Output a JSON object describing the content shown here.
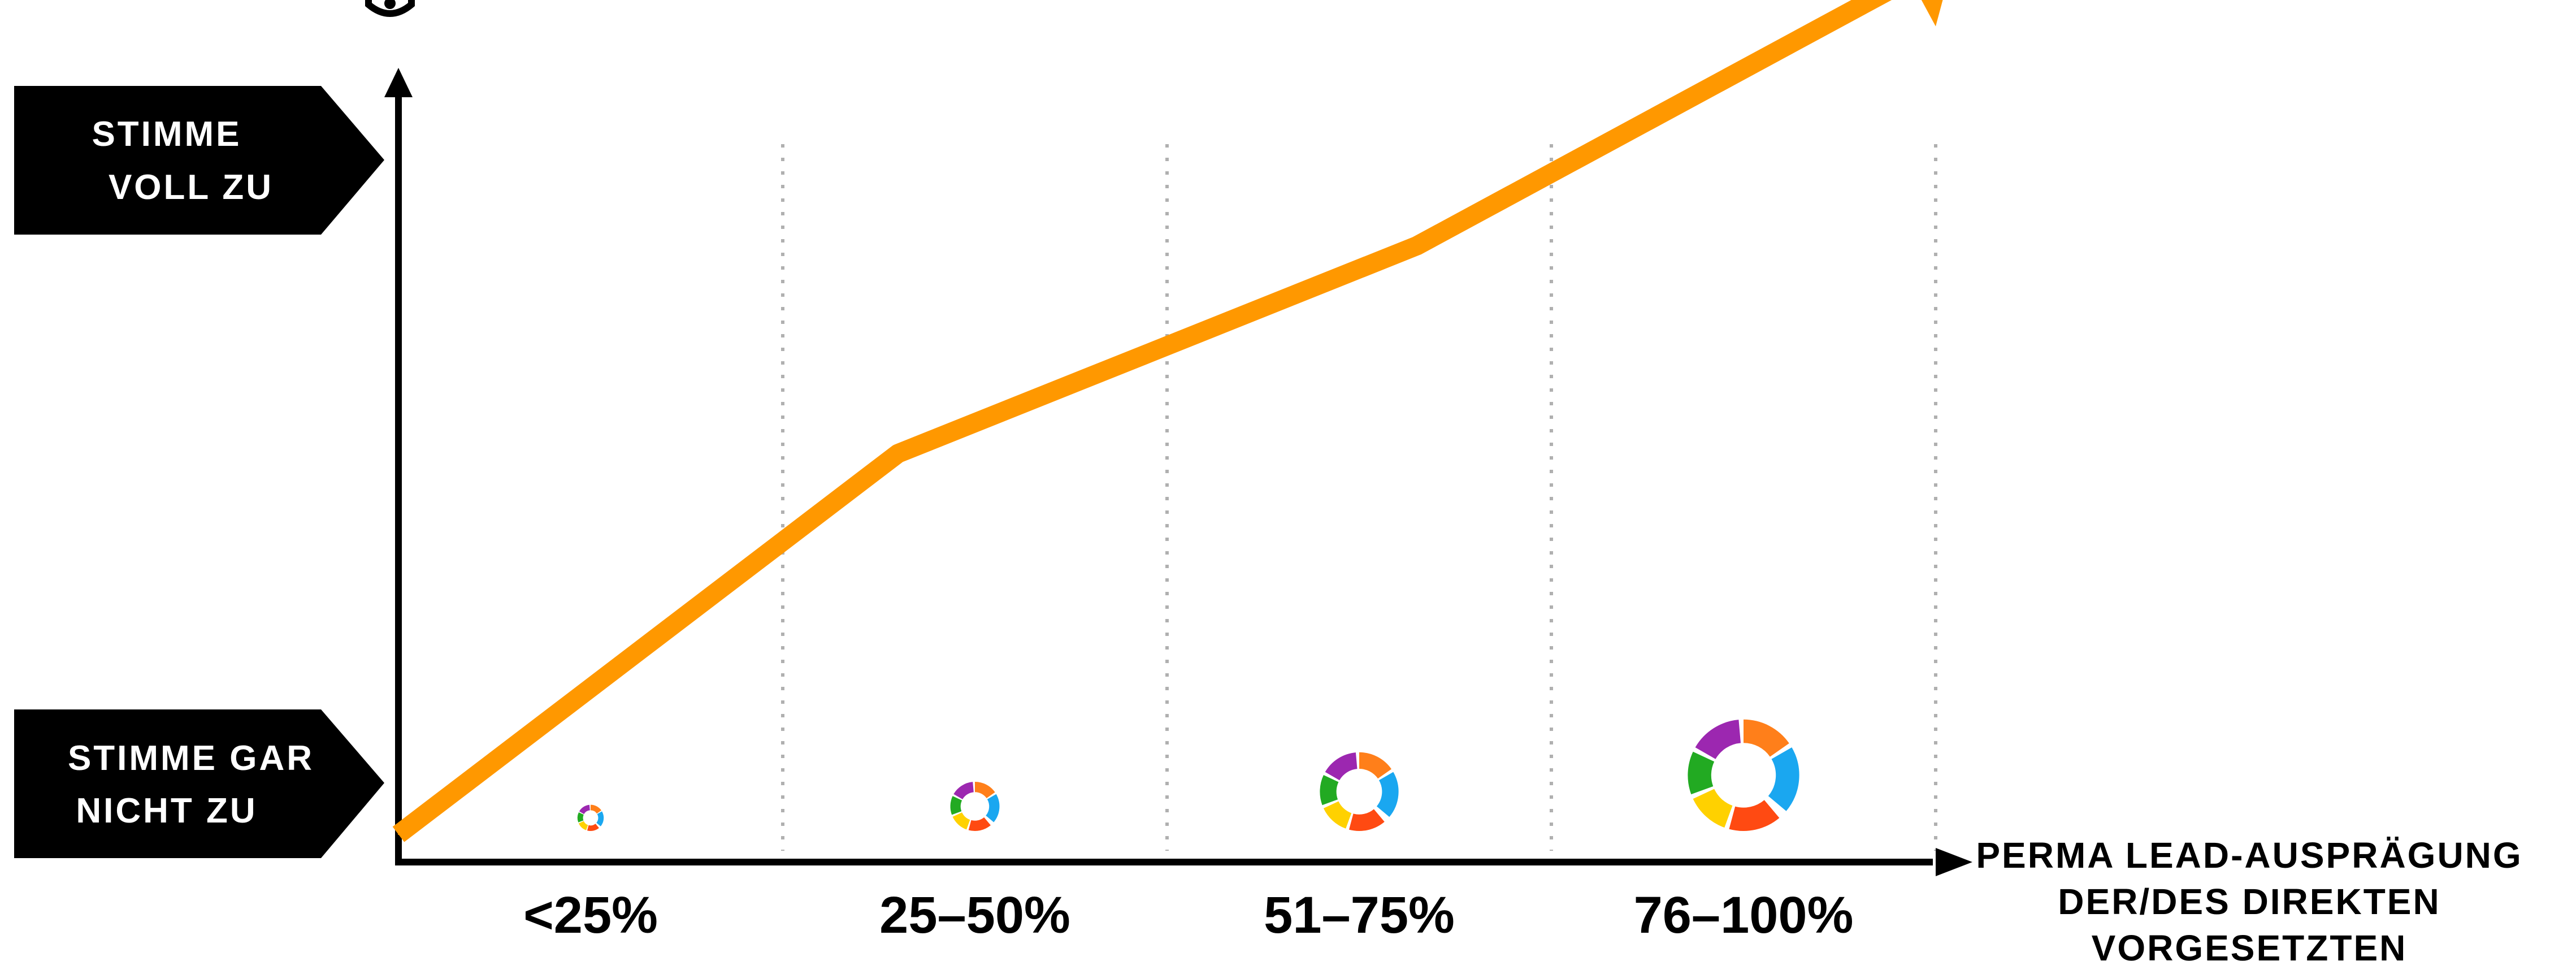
{
  "chart_data": {
    "type": "line",
    "categories": [
      "<25%",
      "25–50%",
      "51–75%",
      "76–100%"
    ],
    "xlabel": [
      "PERMA LEAD-AUSPRÄGUNG",
      "DER/DES DIREKTEN",
      "VORGESETZTEN"
    ],
    "ylabel_top": [
      "STIMME",
      "VOLL ZU"
    ],
    "ylabel_bottom": [
      "STIMME GAR",
      "NICHT ZU"
    ],
    "ylim": [
      0,
      1
    ],
    "series": [
      {
        "color": "#ff9800",
        "points": [
          {
            "x": 0.0,
            "y": 0.04
          },
          {
            "x": 1.3,
            "y": 0.59
          },
          {
            "x": 2.65,
            "y": 0.89
          },
          {
            "x": 4.05,
            "y": 1.31
          }
        ]
      }
    ],
    "ring_markers": [
      {
        "category": "<25%",
        "size": 0.08
      },
      {
        "category": "25–50%",
        "size": 0.15
      },
      {
        "category": "51–75%",
        "size": 0.24
      },
      {
        "category": "76–100%",
        "size": 0.34
      }
    ],
    "ring_colors": [
      "#ffd100",
      "#22aa22",
      "#9c27b0",
      "#ff7f1a",
      "#1aa7f0",
      "#ff4a12"
    ],
    "grid": "vertical dotted",
    "colors": {
      "axis": "#000000",
      "line": "#ff9800",
      "label_box": "#000000",
      "label_text": "#ffffff",
      "grid": "#b0b0b0"
    }
  }
}
